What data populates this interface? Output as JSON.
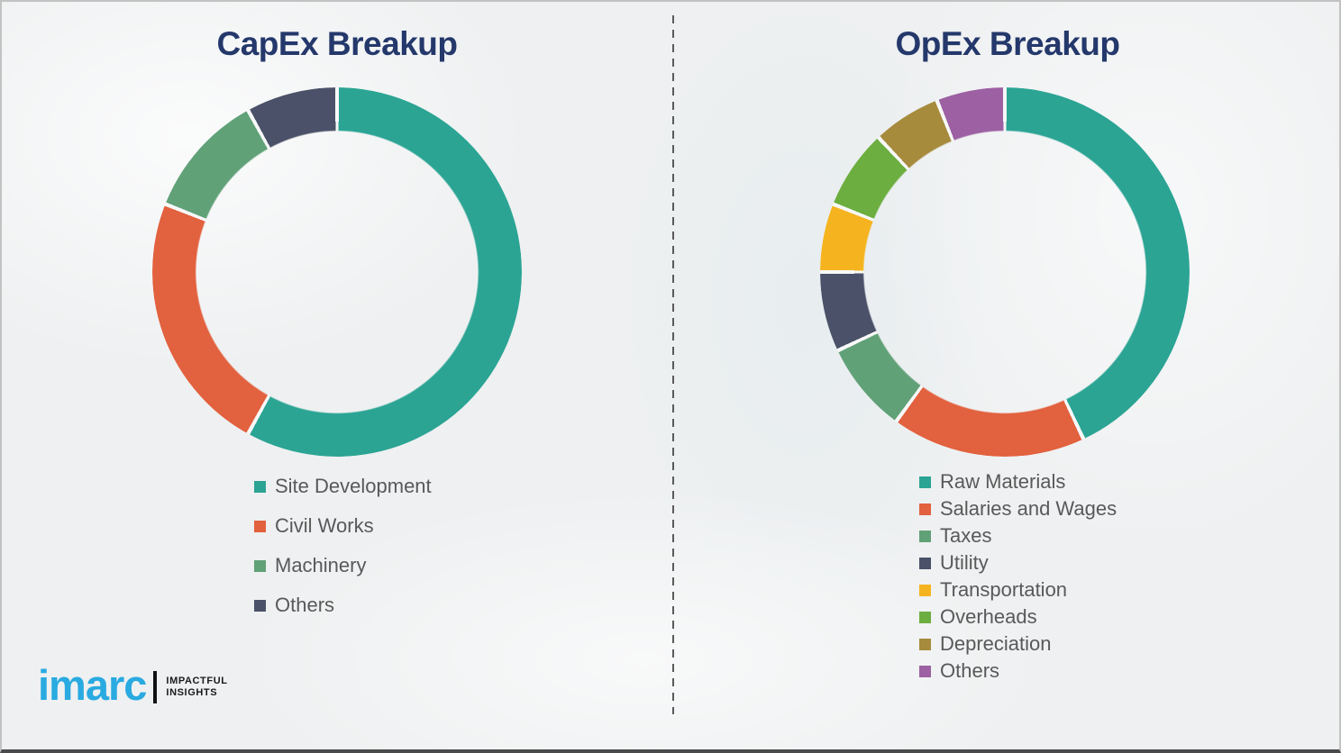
{
  "page": {
    "background_color": "#eef0f1",
    "divider_color": "#5a5a5a",
    "title_color": "#24386b",
    "legend_text_color": "#595959",
    "segment_gap_color": "#f7f8f8"
  },
  "chart_data": [
    {
      "type": "pie",
      "subtype": "donut",
      "title": "CapEx Breakup",
      "categories": [
        "Site Development",
        "Civil Works",
        "Machinery",
        "Others"
      ],
      "values": [
        58,
        23,
        11,
        8
      ],
      "colors": [
        "#2ba494",
        "#e2613e",
        "#61a178",
        "#4a5168"
      ],
      "start_angle_deg": 0,
      "direction": "clockwise",
      "legend_position": "below-left",
      "data_labels": false
    },
    {
      "type": "pie",
      "subtype": "donut",
      "title": "OpEx Breakup",
      "categories": [
        "Raw Materials",
        "Salaries and Wages",
        "Taxes",
        "Utility",
        "Transportation",
        "Overheads",
        "Depreciation",
        "Others"
      ],
      "values": [
        43,
        17,
        8,
        7,
        6,
        7,
        6,
        6
      ],
      "colors": [
        "#2ba494",
        "#e2613e",
        "#61a178",
        "#4a5168",
        "#f5b41f",
        "#6cae3f",
        "#a68b3d",
        "#9c60a3"
      ],
      "start_angle_deg": 0,
      "direction": "clockwise",
      "legend_position": "below-left",
      "data_labels": false
    }
  ],
  "logo": {
    "brand": "imarc",
    "brand_color": "#29aae1",
    "tagline_line1": "IMPACTFUL",
    "tagline_line2": "INSIGHTS"
  }
}
